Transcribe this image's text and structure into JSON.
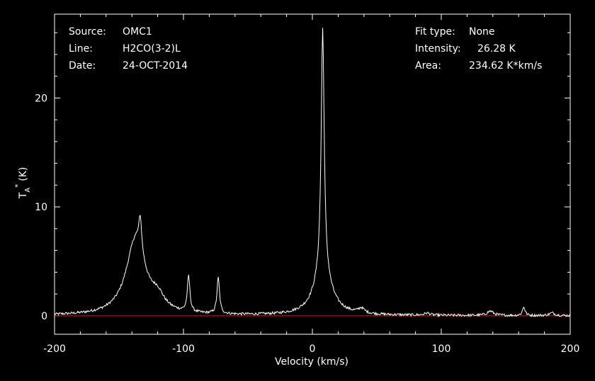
{
  "header": {
    "left": [
      {
        "label": "Source:",
        "value": "OMC1"
      },
      {
        "label": "Line:",
        "value": "H2CO(3-2)L"
      },
      {
        "label": "Date:",
        "value": "24-OCT-2014"
      }
    ],
    "right": [
      {
        "label": "Fit type:",
        "value": "None"
      },
      {
        "label": "Intensity:",
        "value": "26.28 K"
      },
      {
        "label": "Area:",
        "value": "234.62 K*km/s"
      }
    ]
  },
  "colors": {
    "background": "#000000",
    "foreground": "#ffffff",
    "baseline": "#ff0000"
  },
  "chart_data": {
    "type": "line",
    "title": "",
    "xlabel": "Velocity (km/s)",
    "ylabel": "T",
    "ylabel_sub": "A",
    "ylabel_sup": "*",
    "ylabel_unit": "(K)",
    "xlim": [
      -200,
      200
    ],
    "ylim": [
      -1.7,
      27.7
    ],
    "xticks": [
      -200,
      -100,
      0,
      100,
      200
    ],
    "yticks": [
      0,
      10,
      20
    ],
    "baseline": 0,
    "grid": false,
    "series": [
      {
        "peaks": [
          {
            "center": 8,
            "amplitude": 22.6,
            "width": 1.4
          },
          {
            "center": 8,
            "amplitude": 3.8,
            "width": 8
          },
          {
            "center": -133.5,
            "amplitude": 3.0,
            "width": 1.3
          },
          {
            "center": -137,
            "amplitude": 7.0,
            "width": 9
          },
          {
            "center": -120,
            "amplitude": 1.2,
            "width": 6
          },
          {
            "center": -96,
            "amplitude": 3.3,
            "width": 1.2
          },
          {
            "center": -73,
            "amplitude": 3.3,
            "width": 1.2
          },
          {
            "center": 38,
            "amplitude": 0.45,
            "width": 3
          },
          {
            "center": 89,
            "amplitude": 0.2,
            "width": 2.5
          },
          {
            "center": 138,
            "amplitude": 0.4,
            "width": 3
          },
          {
            "center": 164,
            "amplitude": 0.8,
            "width": 1.2
          },
          {
            "center": 186,
            "amplitude": 0.25,
            "width": 2.5
          }
        ],
        "noise": 0.12
      }
    ]
  }
}
